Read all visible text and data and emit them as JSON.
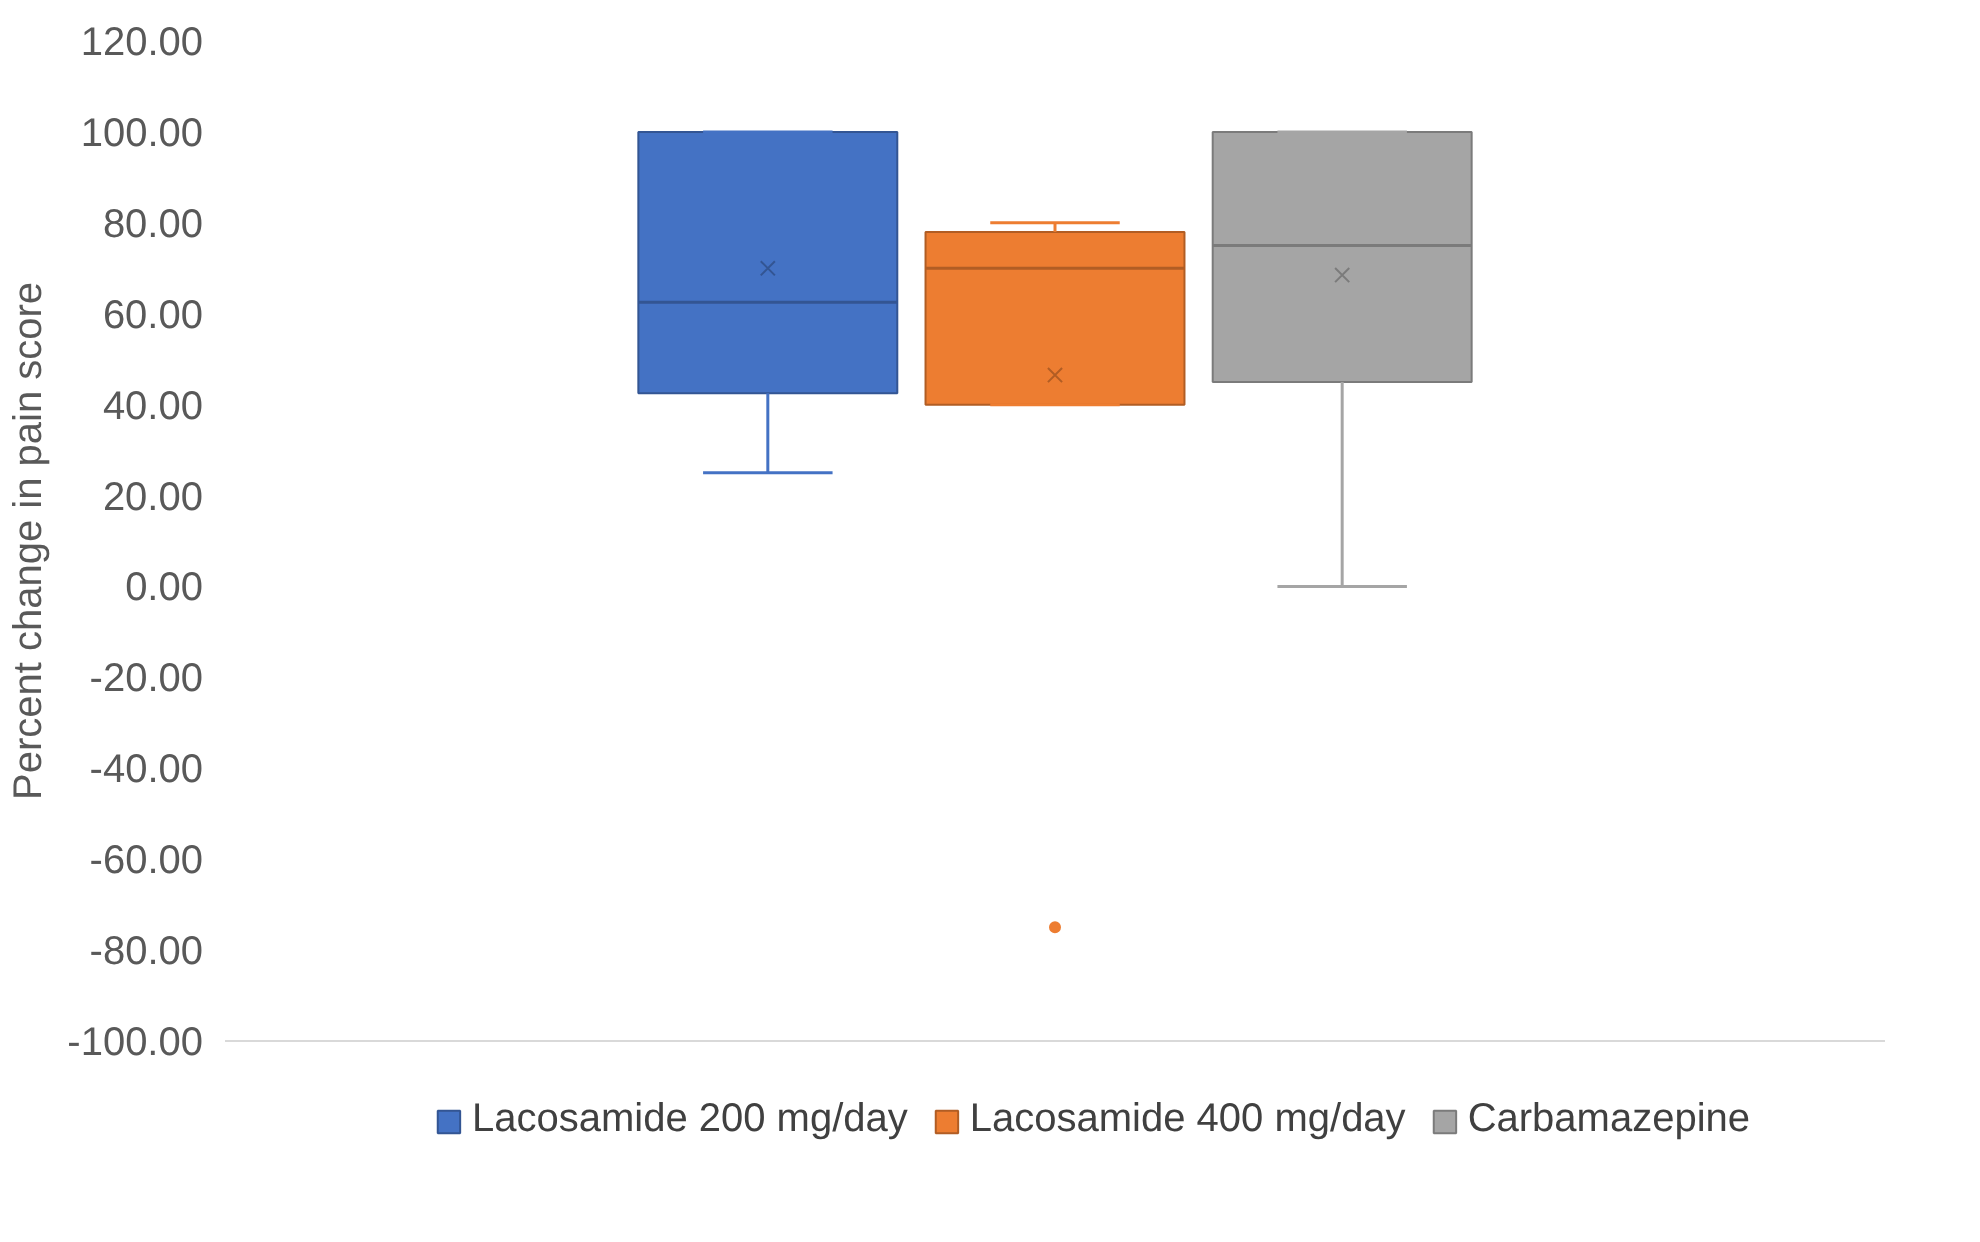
{
  "chart_data": {
    "type": "box",
    "categories": [
      null
    ],
    "ylabel": "Percent change in pain score",
    "ylim": [
      -100,
      120
    ],
    "yticks": [
      {
        "value": -100,
        "label": "-100.00"
      },
      {
        "value": -80,
        "label": "-80.00"
      },
      {
        "value": -60,
        "label": "-60.00"
      },
      {
        "value": -40,
        "label": "-40.00"
      },
      {
        "value": -20,
        "label": "-20.00"
      },
      {
        "value": 0,
        "label": "0.00"
      },
      {
        "value": 20,
        "label": "20.00"
      },
      {
        "value": 40,
        "label": "40.00"
      },
      {
        "value": 60,
        "label": "60.00"
      },
      {
        "value": 80,
        "label": "80.00"
      },
      {
        "value": 100,
        "label": "100.00"
      },
      {
        "value": 120,
        "label": "120.00"
      }
    ],
    "legend": "bottom",
    "grid": false,
    "marker": "cross",
    "series": [
      {
        "name": "Lacosamide 200 mg/day",
        "color": "#4472c4",
        "boxes": [
          {
            "low": 25,
            "q1": 42.5,
            "median": 62.5,
            "q3": 100,
            "high": 100,
            "mean": 70
          }
        ]
      },
      {
        "name": "Lacosamide 400 mg/day",
        "color": "#ed7d31",
        "boxes": [
          {
            "low": 40,
            "q1": 40,
            "median": 70,
            "q3": 78,
            "high": 80,
            "mean": 46.5,
            "outliers": [
              -75
            ]
          }
        ]
      },
      {
        "name": "Carbamazepine",
        "color": "#a5a5a5",
        "boxes": [
          {
            "low": 0,
            "q1": 45,
            "median": 75,
            "q3": 100,
            "high": 100,
            "mean": 68.5
          }
        ]
      }
    ]
  }
}
